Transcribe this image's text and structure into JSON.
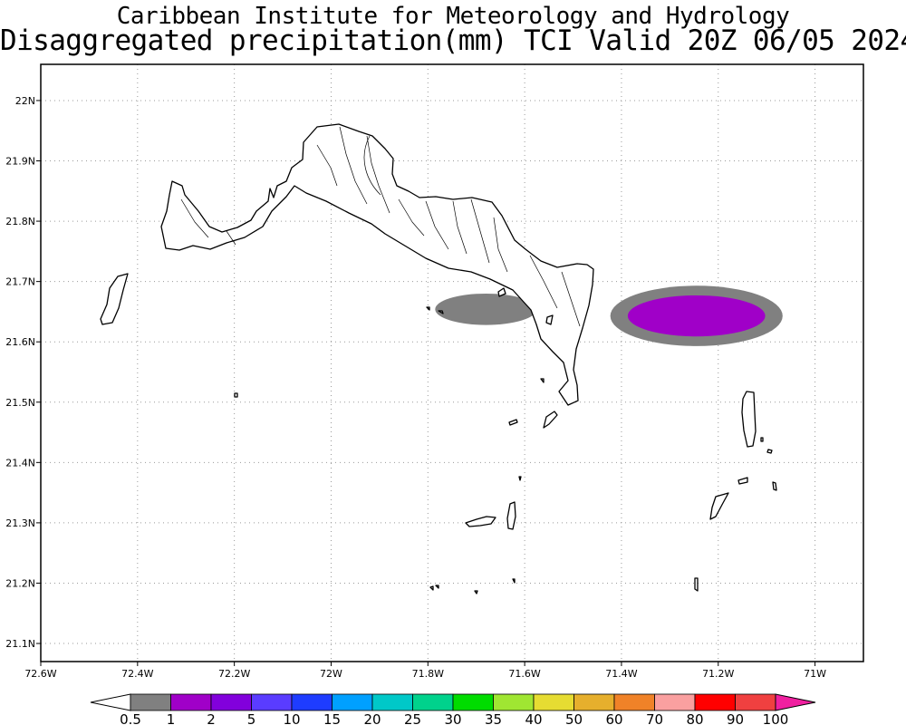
{
  "title_line1": "Caribbean Institute for Meteorology and Hydrology",
  "title_line2": "Disaggregated precipitation(mm) TCI Valid 20Z 06/05 2024",
  "map": {
    "lon_range": [
      -72.6,
      -70.9
    ],
    "lat_range": [
      21.07,
      22.06
    ],
    "lon_ticks": [
      {
        "value": -72.6,
        "label": "72.6W"
      },
      {
        "value": -72.4,
        "label": "72.4W"
      },
      {
        "value": -72.2,
        "label": "72.2W"
      },
      {
        "value": -72.0,
        "label": "72W"
      },
      {
        "value": -71.8,
        "label": "71.8W"
      },
      {
        "value": -71.6,
        "label": "71.6W"
      },
      {
        "value": -71.4,
        "label": "71.4W"
      },
      {
        "value": -71.2,
        "label": "71.2W"
      },
      {
        "value": -71.0,
        "label": "71W"
      }
    ],
    "lat_ticks": [
      {
        "value": 22.0,
        "label": "22N"
      },
      {
        "value": 21.9,
        "label": "21.9N"
      },
      {
        "value": 21.8,
        "label": "21.8N"
      },
      {
        "value": 21.7,
        "label": "21.7N"
      },
      {
        "value": 21.6,
        "label": "21.6N"
      },
      {
        "value": 21.5,
        "label": "21.5N"
      },
      {
        "value": 21.4,
        "label": "21.4N"
      },
      {
        "value": 21.3,
        "label": "21.3N"
      },
      {
        "value": 21.2,
        "label": "21.2N"
      },
      {
        "value": 21.1,
        "label": "21.1N"
      }
    ],
    "grid": "dotted",
    "precip_areas": [
      {
        "name": "west",
        "center": [
          -71.68,
          21.654
        ],
        "radius": [
          0.105,
          0.026
        ],
        "level": "0.5-1",
        "color": "#808080"
      },
      {
        "name": "east-outer",
        "center": [
          -71.245,
          21.643
        ],
        "radius": [
          0.178,
          0.05
        ],
        "level": "0.5-1",
        "color": "#808080"
      },
      {
        "name": "east-inner",
        "center": [
          -71.245,
          21.643
        ],
        "radius": [
          0.142,
          0.034
        ],
        "level": "1-2",
        "color": "#a000c8"
      }
    ]
  },
  "colorbar": {
    "levels": [
      "0.5",
      "1",
      "2",
      "5",
      "10",
      "15",
      "20",
      "25",
      "30",
      "35",
      "40",
      "50",
      "60",
      "70",
      "80",
      "90",
      "100"
    ],
    "colors": [
      "#808080",
      "#a000c8",
      "#8200dc",
      "#5a3cff",
      "#1e3cff",
      "#00a0ff",
      "#00c8c8",
      "#00d28c",
      "#00dc00",
      "#a0e632",
      "#e6dc32",
      "#e6af2d",
      "#f08228",
      "#faa0a0",
      "#ff0000",
      "#f04040"
    ],
    "under_color": "#ffffff",
    "over_color": "#f020a0"
  }
}
